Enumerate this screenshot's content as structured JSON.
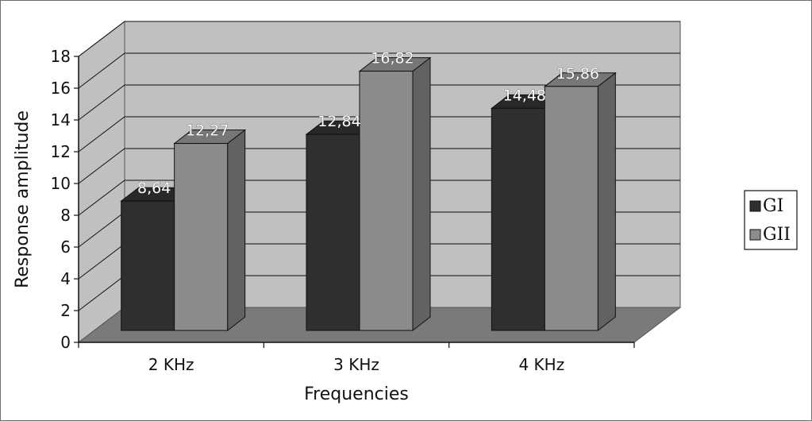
{
  "chart_data": {
    "type": "bar",
    "title": "",
    "xlabel": "Frequencies",
    "ylabel": "Response amplitude",
    "ylim": [
      0,
      18
    ],
    "y_ticks": [
      "0",
      "2",
      "4",
      "6",
      "8",
      "10",
      "12",
      "14",
      "16",
      "18"
    ],
    "categories": [
      "2 KHz",
      "3 KHz",
      "4 KHz"
    ],
    "series": [
      {
        "name": "GI",
        "values": [
          8.64,
          12.84,
          14.48
        ],
        "labels": [
          "8,64",
          "12,84",
          "14,48"
        ],
        "color": "#2f2f2f"
      },
      {
        "name": "GII",
        "values": [
          12.27,
          16.82,
          15.86
        ],
        "labels": [
          "12,27",
          "16,82",
          "15,86"
        ],
        "color": "#8c8c8c"
      }
    ],
    "grid": true,
    "legend": "right",
    "style": "3d-clustered-column"
  }
}
